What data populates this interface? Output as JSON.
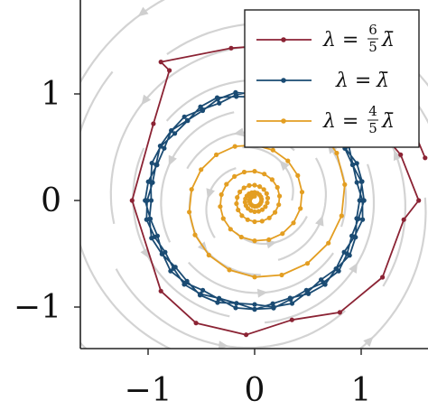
{
  "chart_data": {
    "type": "line",
    "title": "",
    "xlabel": "",
    "ylabel": "",
    "xlim": [
      -1.65,
      1.65
    ],
    "ylim": [
      -1.4,
      1.75
    ],
    "grid": false,
    "background": "stream field of a rotating flow (light gray arrows)",
    "x_ticks": [
      {
        "value": -1,
        "label": "−1"
      },
      {
        "value": 0,
        "label": "0"
      },
      {
        "value": 1,
        "label": "1"
      }
    ],
    "y_ticks": [
      {
        "value": -1,
        "label": "−1"
      },
      {
        "value": 0,
        "label": "0"
      },
      {
        "value": 1,
        "label": "1"
      }
    ],
    "legend": {
      "position": "top-right",
      "entries": [
        {
          "lhs": "λ =",
          "num": "6",
          "den": "5",
          "rhs": "λ̄",
          "color": "#8b2334"
        },
        {
          "lhs": "λ =",
          "num": "",
          "den": "",
          "rhs": "λ̄",
          "color": "#1a4b73"
        },
        {
          "lhs": "λ =",
          "num": "4",
          "den": "5",
          "rhs": "λ̄",
          "color": "#e39e22"
        }
      ]
    },
    "series": [
      {
        "name": "λ = 6/5 λ̄",
        "color": "#8b2334",
        "kind": "outward spiral",
        "points": [
          [
            0.12,
            1.08
          ],
          [
            0.58,
            1.12
          ],
          [
            1.02,
            0.84
          ],
          [
            1.37,
            0.43
          ],
          [
            1.54,
            0.0
          ],
          [
            1.4,
            -0.18
          ],
          [
            1.2,
            -0.72
          ],
          [
            0.8,
            -1.05
          ],
          [
            0.35,
            -1.12
          ],
          [
            -0.08,
            -1.26
          ],
          [
            -0.55,
            -1.15
          ],
          [
            -0.88,
            -0.85
          ],
          [
            -1.15,
            0.0
          ],
          [
            -0.95,
            0.72
          ],
          [
            -0.8,
            1.22
          ],
          [
            -0.88,
            1.3
          ],
          [
            -0.22,
            1.43
          ],
          [
            0.45,
            1.48
          ],
          [
            1.0,
            1.38
          ],
          [
            1.35,
            1.0
          ],
          [
            1.6,
            0.4
          ]
        ]
      },
      {
        "name": "λ = λ̄",
        "color": "#1a4b73",
        "kind": "limit cycle",
        "radius": 1.0,
        "turns": 3,
        "points_per_turn": 36,
        "wobble": 0.03
      },
      {
        "name": "λ = 4/5 λ̄",
        "color": "#e39e22",
        "kind": "inward spiral",
        "start_radius": 0.99,
        "end_radius": 0.04,
        "turns": 5,
        "points_per_turn": 18
      }
    ]
  }
}
